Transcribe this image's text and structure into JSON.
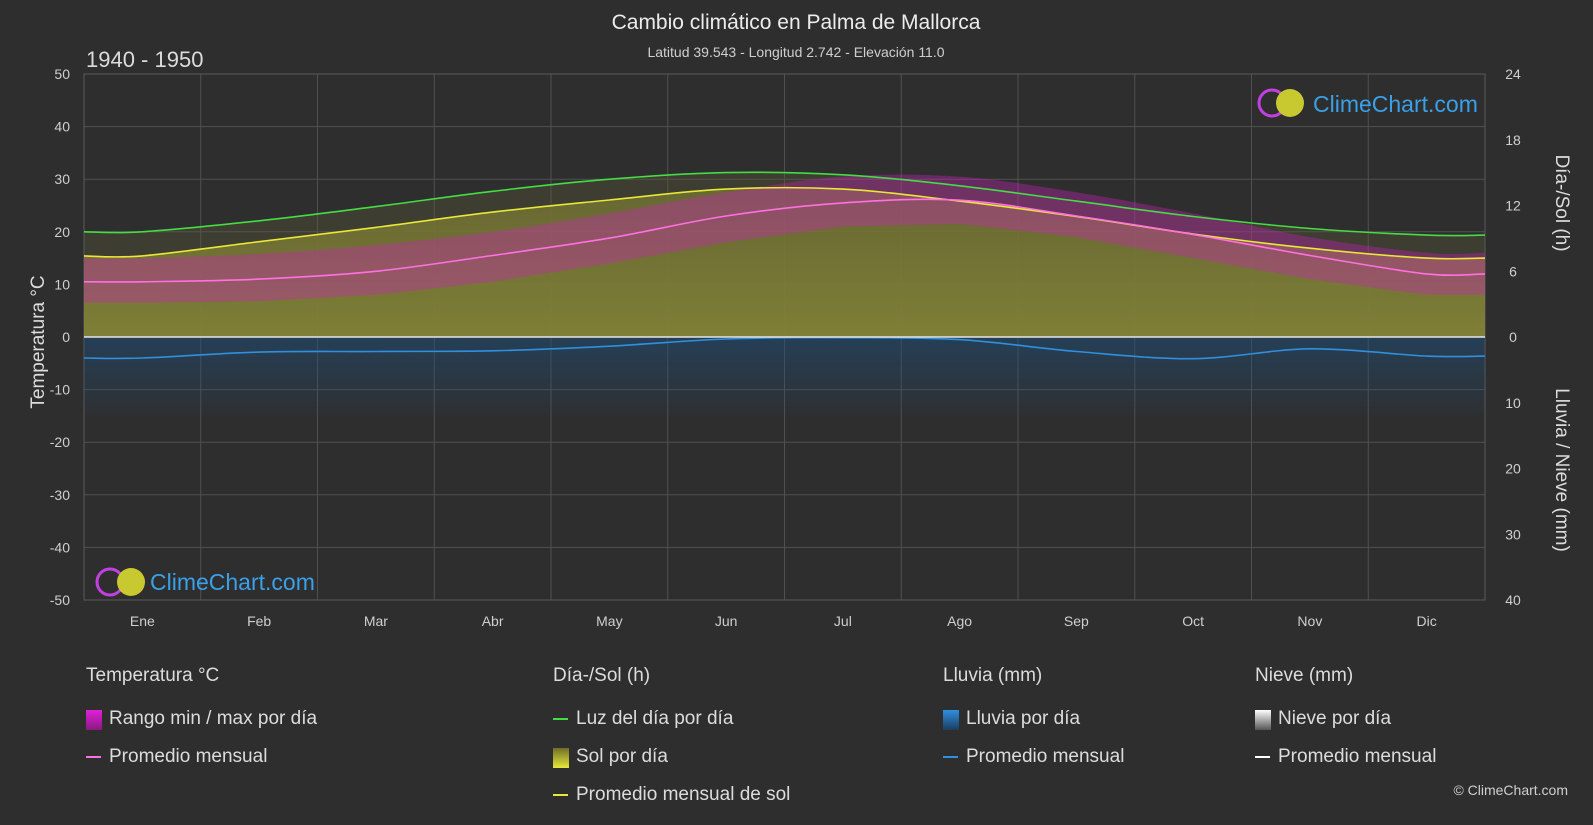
{
  "header": {
    "title": "Cambio climático en Palma de Mallorca",
    "subtitle": "Latitud 39.543 - Longitud 2.742 - Elevación 11.0",
    "period": "1940 - 1950"
  },
  "watermark": {
    "text": "ClimeChart.com"
  },
  "copyright": "© ClimeChart.com",
  "legend": {
    "temperature": {
      "title": "Temperatura °C",
      "range_label": "Rango min / max por día",
      "avg_label": "Promedio mensual"
    },
    "daylight": {
      "title": "Día-/Sol (h)",
      "daylight_label": "Luz del día por día",
      "sun_label": "Sol por día",
      "sun_avg_label": "Promedio mensual de sol"
    },
    "rain": {
      "title": "Lluvia (mm)",
      "rain_label": "Lluvia por día",
      "avg_label": "Promedio mensual"
    },
    "snow": {
      "title": "Nieve (mm)",
      "snow_label": "Nieve por día",
      "avg_label": "Promedio mensual"
    }
  },
  "colors": {
    "background": "#2e2e2e",
    "daylight": "#44dd44",
    "sunshine_fill": "#a8a832",
    "sunshine_avg": "#e8e838",
    "temp_range": "#d020c0",
    "temp_avg": "#ff70e0",
    "rain": "#2a7ac0",
    "rain_avg": "#2f8fe0",
    "snow_avg": "#ffffff",
    "watermark_text": "#3aa0e8"
  },
  "chart_data": {
    "type": "area",
    "months": [
      "Ene",
      "Feb",
      "Mar",
      "Abr",
      "May",
      "Jun",
      "Jul",
      "Ago",
      "Sep",
      "Oct",
      "Nov",
      "Dic"
    ],
    "y_left": {
      "label": "Temperatura °C",
      "range": [
        -50,
        50
      ],
      "ticks": [
        50,
        40,
        30,
        20,
        10,
        0,
        -10,
        -20,
        -30,
        -40,
        -50
      ]
    },
    "y_right_top": {
      "label": "Día-/Sol (h)",
      "range": [
        0,
        24
      ],
      "ticks": [
        24,
        18,
        12,
        6,
        0
      ]
    },
    "y_right_bottom": {
      "label": "Lluvia / Nieve (mm)",
      "range": [
        0,
        40
      ],
      "ticks": [
        0,
        10,
        20,
        30,
        40
      ]
    },
    "grid": true,
    "series": {
      "daylight_hours": [
        9.6,
        10.6,
        11.9,
        13.3,
        14.4,
        15.0,
        14.8,
        13.8,
        12.4,
        11.0,
        9.9,
        9.3
      ],
      "sunshine_hours_avg": [
        7.4,
        8.7,
        10.0,
        11.4,
        12.5,
        13.5,
        13.5,
        12.4,
        11.0,
        9.4,
        8.1,
        7.2
      ],
      "temp_avg_c": [
        10.5,
        11.0,
        12.5,
        15.5,
        18.8,
        23.0,
        25.5,
        26.0,
        23.0,
        19.5,
        15.5,
        12.0
      ],
      "temp_max_avg_c": [
        15.0,
        15.8,
        17.5,
        20.0,
        23.5,
        27.5,
        30.5,
        30.5,
        27.5,
        23.5,
        19.0,
        16.0
      ],
      "temp_min_avg_c": [
        6.5,
        6.8,
        8.0,
        10.5,
        14.0,
        18.0,
        21.0,
        21.5,
        19.0,
        15.0,
        11.0,
        8.0
      ],
      "rain_avg_mm": [
        3.2,
        2.3,
        2.2,
        2.1,
        1.4,
        0.3,
        0.1,
        0.4,
        2.2,
        3.3,
        1.8,
        2.9
      ],
      "snow_avg_mm": [
        0,
        0,
        0,
        0,
        0,
        0,
        0,
        0,
        0,
        0,
        0,
        0
      ]
    }
  }
}
